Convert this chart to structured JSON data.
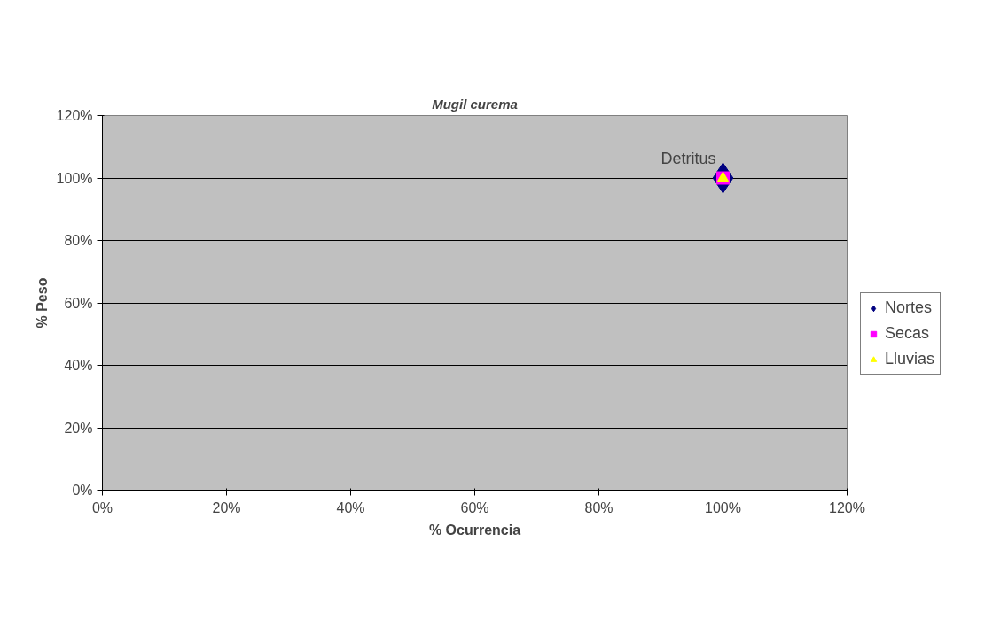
{
  "chart_data": {
    "type": "scatter",
    "title": "Mugil curema",
    "xlabel": "% Ocurrencia",
    "ylabel": "% Peso",
    "x": [
      100
    ],
    "series": [
      {
        "name": "Nortes",
        "color": "#000080",
        "marker": "diamond",
        "values": [
          100
        ]
      },
      {
        "name": "Secas",
        "color": "#ff00ff",
        "marker": "square",
        "values": [
          100
        ]
      },
      {
        "name": "Lluvias",
        "color": "#ffff00",
        "marker": "triangle",
        "values": [
          100
        ]
      }
    ],
    "annotations": [
      {
        "text": "Detritus",
        "x": 100,
        "y": 100
      }
    ],
    "xlim": [
      0,
      120
    ],
    "ylim": [
      0,
      120
    ],
    "xticks": [
      {
        "value": 0,
        "label": "0%"
      },
      {
        "value": 20,
        "label": "20%"
      },
      {
        "value": 40,
        "label": "40%"
      },
      {
        "value": 60,
        "label": "60%"
      },
      {
        "value": 80,
        "label": "80%"
      },
      {
        "value": 100,
        "label": "100%"
      },
      {
        "value": 120,
        "label": "120%"
      }
    ],
    "yticks": [
      {
        "value": 0,
        "label": "0%"
      },
      {
        "value": 20,
        "label": "20%"
      },
      {
        "value": 40,
        "label": "40%"
      },
      {
        "value": 60,
        "label": "60%"
      },
      {
        "value": 80,
        "label": "80%"
      },
      {
        "value": 100,
        "label": "100%"
      },
      {
        "value": 120,
        "label": "120%"
      }
    ],
    "grid": "y",
    "legend": "right"
  }
}
